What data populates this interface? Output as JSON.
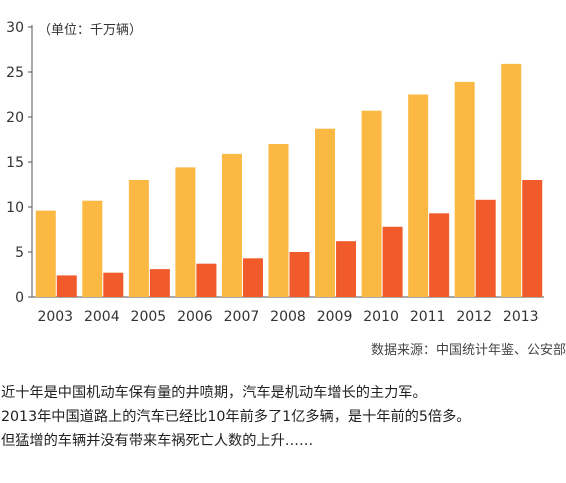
{
  "chart_data": {
    "type": "bar",
    "unit_label": "（单位：千万辆）",
    "categories": [
      "2003",
      "2004",
      "2005",
      "2006",
      "2007",
      "2008",
      "2009",
      "2010",
      "2011",
      "2012",
      "2013"
    ],
    "series": [
      {
        "values": [
          9.6,
          10.7,
          13.0,
          14.4,
          15.9,
          17.0,
          18.7,
          20.7,
          22.5,
          23.9,
          25.9
        ],
        "color": "#FBB843"
      },
      {
        "values": [
          2.4,
          2.7,
          3.1,
          3.7,
          4.3,
          5.0,
          6.2,
          7.8,
          9.3,
          10.8,
          13.0
        ],
        "color": "#F15A2B"
      }
    ],
    "ylim": [
      0,
      30
    ],
    "yticks": [
      0,
      5,
      10,
      15,
      20,
      25,
      30
    ],
    "grid": false
  },
  "source": "数据来源：中国统计年鉴、公安部",
  "paragraph": [
    "近十年是中国机动车保有量的井喷期，汽车是机动车增长的主力军。",
    "2013年中国道路上的汽车已经比10年前多了1亿多辆，是十年前的5倍多。",
    "但猛增的车辆并没有带来车祸死亡人数的上升……"
  ]
}
